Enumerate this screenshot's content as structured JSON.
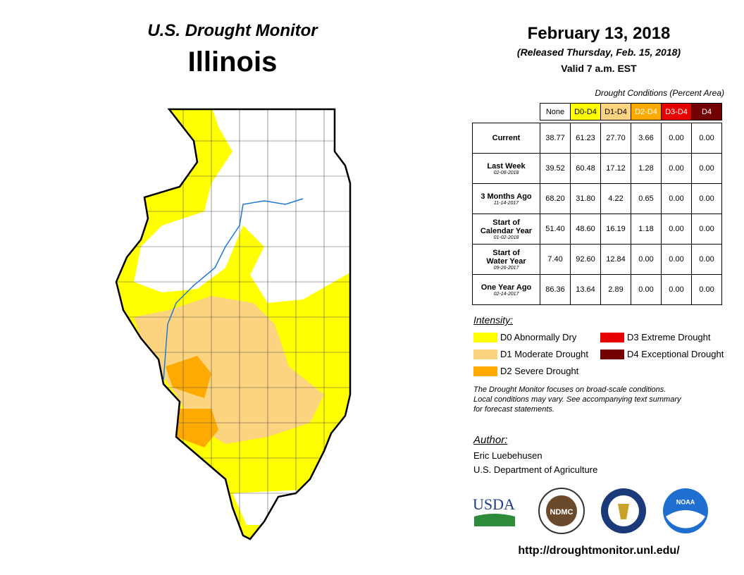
{
  "header": {
    "title": "U.S. Drought Monitor",
    "state": "Illinois"
  },
  "date": {
    "main": "February 13, 2018",
    "released": "(Released Thursday, Feb. 15, 2018)",
    "valid": "Valid 7 a.m. EST"
  },
  "table": {
    "caption": "Drought Conditions (Percent Area)",
    "columns": [
      {
        "label": "None",
        "color": "#ffffff",
        "text": "#000000"
      },
      {
        "label": "D0-D4",
        "color": "#ffff00",
        "text": "#000000"
      },
      {
        "label": "D1-D4",
        "color": "#fcd37f",
        "text": "#000000"
      },
      {
        "label": "D2-D4",
        "color": "#ffaa00",
        "text": "#ffffff"
      },
      {
        "label": "D3-D4",
        "color": "#e60000",
        "text": "#ffffff"
      },
      {
        "label": "D4",
        "color": "#730000",
        "text": "#ffffff"
      }
    ],
    "rows": [
      {
        "label": [
          "Current"
        ],
        "values": [
          "38.77",
          "61.23",
          "27.70",
          "3.66",
          "0.00",
          "0.00"
        ]
      },
      {
        "label": [
          "Last Week"
        ],
        "date": "02-06-2018",
        "values": [
          "39.52",
          "60.48",
          "17.12",
          "1.28",
          "0.00",
          "0.00"
        ]
      },
      {
        "label": [
          "3 Months Ago"
        ],
        "date": "11-14-2017",
        "values": [
          "68.20",
          "31.80",
          "4.22",
          "0.65",
          "0.00",
          "0.00"
        ]
      },
      {
        "label": [
          "Start of",
          "Calendar Year"
        ],
        "date": "01-02-2018",
        "values": [
          "51.40",
          "48.60",
          "16.19",
          "1.18",
          "0.00",
          "0.00"
        ]
      },
      {
        "label": [
          "Start of",
          "Water Year"
        ],
        "date": "09-26-2017",
        "values": [
          "7.40",
          "92.60",
          "12.84",
          "0.00",
          "0.00",
          "0.00"
        ]
      },
      {
        "label": [
          "One Year Ago"
        ],
        "date": "02-14-2017",
        "values": [
          "86.36",
          "13.64",
          "2.89",
          "0.00",
          "0.00",
          "0.00"
        ]
      }
    ]
  },
  "legend": {
    "title": "Intensity:",
    "items": [
      {
        "label": "D0 Abnormally Dry",
        "color": "#ffff00"
      },
      {
        "label": "D1 Moderate Drought",
        "color": "#fcd37f"
      },
      {
        "label": "D2 Severe Drought",
        "color": "#ffaa00"
      },
      {
        "label": "D3 Extreme Drought",
        "color": "#e60000"
      },
      {
        "label": "D4 Exceptional Drought",
        "color": "#730000"
      }
    ]
  },
  "note": [
    "The Drought Monitor focuses on broad-scale conditions.",
    "Local conditions may vary. See accompanying text summary",
    "for forecast statements."
  ],
  "author": {
    "title": "Author:",
    "lines": [
      "Eric Luebehusen",
      "U.S. Department of Agriculture"
    ]
  },
  "logos": [
    "USDA",
    "NDMC",
    "NOAA"
  ],
  "url": "http://droughtmonitor.unl.edu/"
}
